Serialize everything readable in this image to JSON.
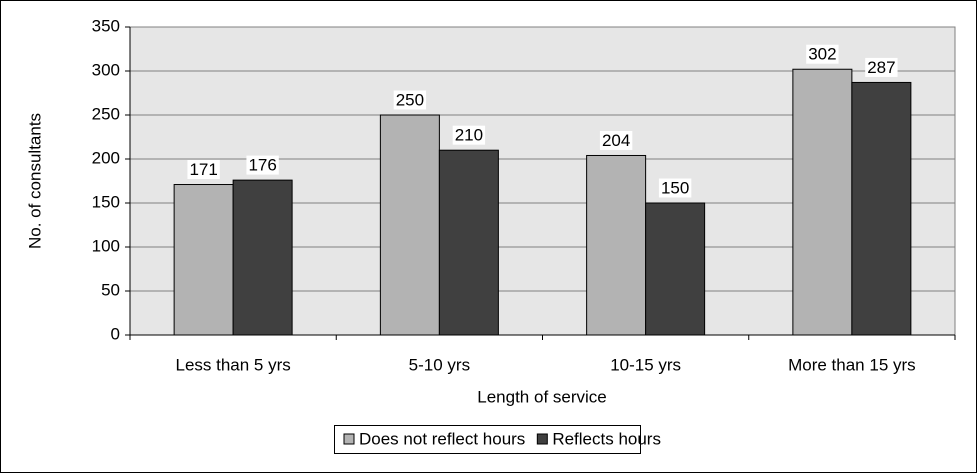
{
  "chart_data": {
    "type": "bar",
    "categories": [
      "Less than 5 yrs",
      "5-10 yrs",
      "10-15 yrs",
      "More than 15 yrs"
    ],
    "series": [
      {
        "name": "Does not reflect hours",
        "color": "#b3b3b3",
        "values": [
          171,
          250,
          204,
          302
        ]
      },
      {
        "name": "Reflects hours",
        "color": "#404040",
        "values": [
          176,
          210,
          150,
          287
        ]
      }
    ],
    "xlabel": "Length of service",
    "ylabel": "No. of consultants",
    "ylim": [
      0,
      350
    ],
    "yticks": [
      0,
      50,
      100,
      150,
      200,
      250,
      300,
      350
    ],
    "grid": true,
    "legend": "bottom"
  }
}
